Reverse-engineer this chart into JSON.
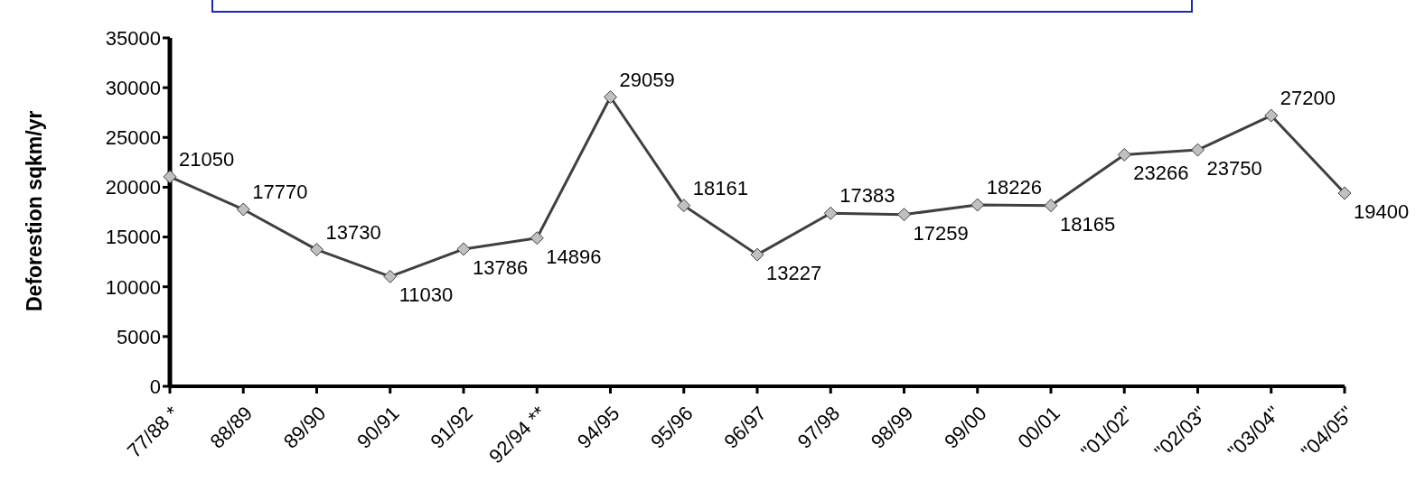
{
  "chart_data": {
    "type": "line",
    "ylabel": "Deforestion sqkm/yr",
    "categories": [
      "77/88 *",
      "88/89",
      "89/90",
      "90/91",
      "91/92",
      "92/94 **",
      "94/95",
      "95/96",
      "96/97",
      "97/98",
      "98/99",
      "99/00",
      "00/01",
      "\"01/02\"",
      "\"02/03\"",
      "\"03/04\"",
      "\"04/05\""
    ],
    "series": [
      {
        "color": "#404040",
        "values": [
          21050,
          17770,
          13730,
          11030,
          13786,
          14896,
          29059,
          18161,
          13227,
          17383,
          17259,
          18226,
          18165,
          23266,
          23750,
          27200,
          19400
        ]
      }
    ],
    "ylim": [
      0,
      35000
    ],
    "yticks": [
      0,
      5000,
      10000,
      15000,
      20000,
      25000,
      30000,
      35000
    ],
    "marker": "diamond",
    "data_labels": true,
    "grid": false,
    "legend": false
  }
}
